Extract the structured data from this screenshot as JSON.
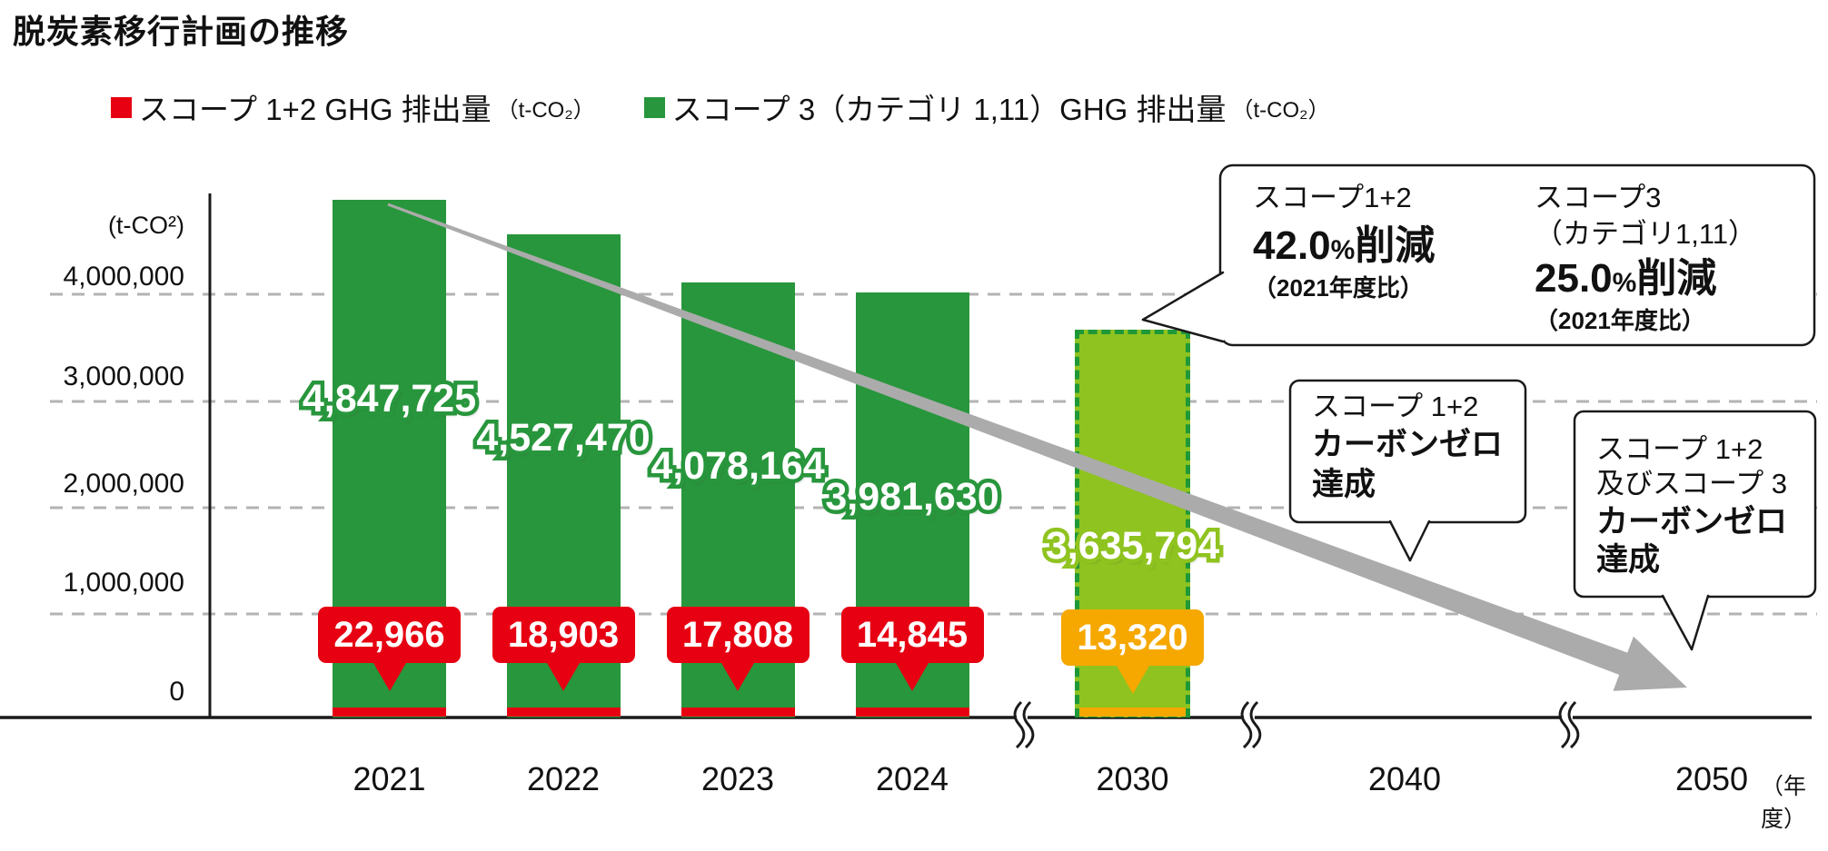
{
  "page": {
    "title": "脱炭素移行計画の推移"
  },
  "legend": [
    {
      "label": "スコープ 1+2 GHG 排出量",
      "unit": "（t-CO₂）",
      "color": "#E60012"
    },
    {
      "label": "スコープ 3（カテゴリ 1,11）GHG 排出量",
      "unit": "（t-CO₂）",
      "color": "#28963C"
    }
  ],
  "axis": {
    "y_unit": "(t-CO²)",
    "y_ticks": [
      "4,000,000",
      "3,000,000",
      "2,000,000",
      "1,000,000",
      "0"
    ],
    "x_unit": "（年度）"
  },
  "chart_data": {
    "type": "bar",
    "title": "脱炭素移行計画の推移",
    "categories": [
      "2021",
      "2022",
      "2023",
      "2024",
      "2030",
      "2040",
      "2050"
    ],
    "series": [
      {
        "name": "スコープ 3（カテゴリ 1,11）GHG 排出量（t-CO₂）",
        "values": [
          4847725,
          4527470,
          4078164,
          3981630,
          3635794,
          null,
          null
        ]
      },
      {
        "name": "スコープ 1+2 GHG 排出量（t-CO₂）",
        "values": [
          22966,
          18903,
          17808,
          14845,
          13320,
          null,
          null
        ]
      }
    ],
    "planned": [
      false,
      false,
      false,
      false,
      true,
      false,
      false
    ],
    "ylabel": "(t-CO²)",
    "xlabel": "（年度）",
    "ylim": [
      0,
      5000000
    ],
    "ytick_interval": 1000000,
    "grid": "dashed-horizontal",
    "legend_position": "top",
    "annotations": [
      "スコープ1+2 42.0%削減（2021年度比）/ スコープ3（カテゴリ1,11）25.0%削減（2021年度比）at 2030",
      "スコープ 1+2 カーボンゼロ達成 at 2040",
      "スコープ 1+2 及びスコープ 3 カーボンゼロ達成 at 2050",
      "灰色の下降矢印（排出量削減トレンド）"
    ]
  },
  "callouts": {
    "reduction": {
      "scope12": {
        "title": "スコープ1+2",
        "value": "42.0",
        "pct": "%",
        "word": "削減",
        "basis": "（2021年度比）"
      },
      "scope3": {
        "title": "スコープ3",
        "category": "（カテゴリ1,11）",
        "value": "25.0",
        "pct": "%",
        "word": "削減",
        "basis": "（2021年度比）"
      }
    },
    "zero2040": {
      "line1": "スコープ 1+2",
      "line2": "カーボンゼロ",
      "line3": "達成"
    },
    "zero2050": {
      "line1": "スコープ 1+2",
      "line2": "及びスコープ 3",
      "line3": "カーボンゼロ",
      "line4": "達成"
    }
  },
  "colors": {
    "scope3_bar": "#28963C",
    "scope3_planned_bar": "#8FC31F",
    "planned_border": "#1F9838",
    "scope12_badge": "#E60012",
    "scope12_planned_badge": "#F6A800",
    "arrow": "#ABABAB",
    "gridline": "#B3B3B3",
    "axis_line": "#1A1A1A"
  }
}
